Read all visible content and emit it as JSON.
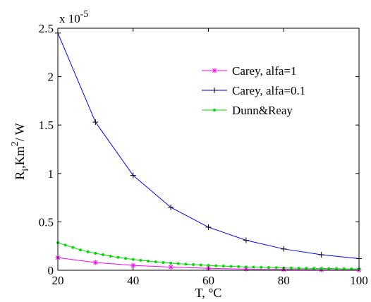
{
  "chart_data": {
    "type": "line",
    "xlabel": "T, °C",
    "ylabel": {
      "base": "R",
      "subscript": "i",
      "rest1": ",Km",
      "superscript": "2",
      "rest2": "/ W"
    },
    "y_multiplier": {
      "base": "x 10",
      "exponent": "-5"
    },
    "xlim": [
      20,
      100
    ],
    "ylim": [
      0,
      2.5e-05
    ],
    "x_ticks": [
      20,
      40,
      60,
      80,
      100
    ],
    "x_tick_labels": [
      "20",
      "40",
      "60",
      "80",
      "100"
    ],
    "y_ticks": [
      0,
      5e-06,
      1e-05,
      1.5e-05,
      2e-05,
      2.5e-05
    ],
    "y_tick_labels": [
      "0",
      "0.5",
      "1",
      "1.5",
      "2",
      "2.5"
    ],
    "grid": false,
    "legend_position": "top-right",
    "series": [
      {
        "name": "Carey, alfa=1",
        "color": "#ff00ff",
        "marker": "star",
        "x": [
          20,
          30,
          40,
          50,
          60,
          70,
          80,
          90,
          100
        ],
        "y": [
          1.3e-06,
          8e-07,
          5e-07,
          3.3e-07,
          2e-07,
          1.2e-07,
          8e-08,
          5e-08,
          3e-08
        ]
      },
      {
        "name": "Carey, alfa=0.1",
        "color": "#0000ff",
        "marker": "plus",
        "x": [
          20,
          30,
          40,
          50,
          60,
          70,
          80,
          90,
          100
        ],
        "y": [
          2.45e-05,
          1.53e-05,
          9.8e-06,
          6.5e-06,
          4.45e-06,
          3.1e-06,
          2.2e-06,
          1.6e-06,
          1.2e-06
        ]
      },
      {
        "name": "Dunn&Reay",
        "color": "#00dd00",
        "marker": "dot",
        "x": [
          20,
          22,
          24,
          26,
          28,
          30,
          32,
          34,
          36,
          38,
          40,
          42,
          44,
          46,
          48,
          50,
          52,
          54,
          56,
          58,
          60,
          62,
          64,
          66,
          68,
          70,
          72,
          74,
          76,
          78,
          80,
          82,
          84,
          86,
          88,
          90,
          92,
          94,
          96,
          98,
          100
        ],
        "y": [
          2.85e-06,
          2.6e-06,
          2.35e-06,
          2.1e-06,
          1.9e-06,
          1.75e-06,
          1.6e-06,
          1.45e-06,
          1.33e-06,
          1.22e-06,
          1.12e-06,
          1.03e-06,
          9.5e-07,
          8.7e-07,
          8e-07,
          7.4e-07,
          6.8e-07,
          6.3e-07,
          5.8e-07,
          5.4e-07,
          5e-07,
          4.6e-07,
          4.3e-07,
          4e-07,
          3.7e-07,
          3.4e-07,
          3.2e-07,
          3e-07,
          2.8e-07,
          2.6e-07,
          2.4e-07,
          2.2e-07,
          2.1e-07,
          2e-07,
          1.9e-07,
          1.8e-07,
          1.7e-07,
          1.6e-07,
          1.5e-07,
          1.4e-07,
          1.3e-07
        ]
      }
    ]
  }
}
